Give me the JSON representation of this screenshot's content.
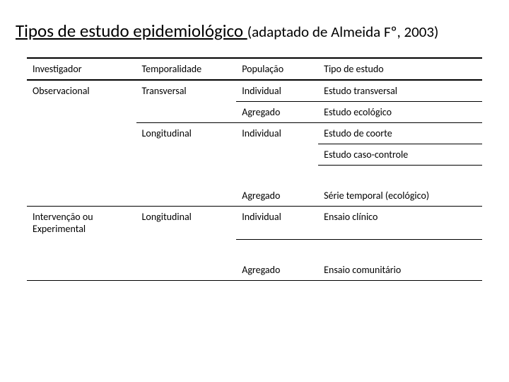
{
  "title": {
    "main": "Tipos de estudo epidemiológico ",
    "sub": "(adaptado de Almeida Fº, 2003)"
  },
  "table": {
    "headers": [
      "Investigador",
      "Temporalidade",
      "População",
      "Tipo de estudo"
    ],
    "rows": [
      {
        "c1": "Observacional",
        "c2": "Transversal",
        "c3": "Individual",
        "c4": "Estudo transversal"
      },
      {
        "c1": "",
        "c2": "",
        "c3": "Agregado",
        "c4": "Estudo ecológico"
      },
      {
        "c1": "",
        "c2": "Longitudinal",
        "c3": "Individual",
        "c4": "Estudo de coorte"
      },
      {
        "c1": "",
        "c2": "",
        "c3": "",
        "c4": "Estudo caso-controle"
      },
      {
        "c1": "",
        "c2": "",
        "c3": "Agregado",
        "c4": "Série temporal (ecológico)"
      },
      {
        "c1": "Intervenção ou Experimental",
        "c2": "Longitudinal",
        "c3": "Individual",
        "c4": "Ensaio clínico"
      },
      {
        "c1": "",
        "c2": "",
        "c3": "Agregado",
        "c4": "Ensaio comunitário"
      }
    ]
  }
}
